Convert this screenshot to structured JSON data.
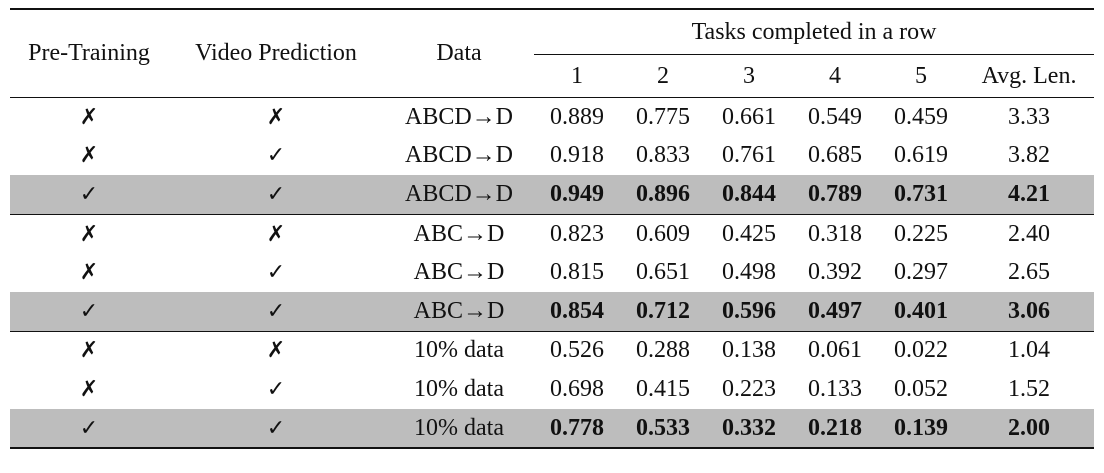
{
  "headers": {
    "pretraining": "Pre-Training",
    "video_prediction": "Video Prediction",
    "data": "Data",
    "tasks_group": "Tasks completed in a row",
    "task_cols": [
      "1",
      "2",
      "3",
      "4",
      "5",
      "Avg. Len."
    ]
  },
  "rows": [
    {
      "pretraining": "✗",
      "video": "✗",
      "data": "ABCD→D",
      "values": [
        "0.889",
        "0.775",
        "0.661",
        "0.549",
        "0.459",
        "3.33"
      ]
    },
    {
      "pretraining": "✗",
      "video": "✓",
      "data": "ABCD→D",
      "values": [
        "0.918",
        "0.833",
        "0.761",
        "0.685",
        "0.619",
        "3.82"
      ]
    },
    {
      "pretraining": "✓",
      "video": "✓",
      "data": "ABCD→D",
      "values": [
        "0.949",
        "0.896",
        "0.844",
        "0.789",
        "0.731",
        "4.21"
      ]
    },
    {
      "pretraining": "✗",
      "video": "✗",
      "data": "ABC→D",
      "values": [
        "0.823",
        "0.609",
        "0.425",
        "0.318",
        "0.225",
        "2.40"
      ]
    },
    {
      "pretraining": "✗",
      "video": "✓",
      "data": "ABC→D",
      "values": [
        "0.815",
        "0.651",
        "0.498",
        "0.392",
        "0.297",
        "2.65"
      ]
    },
    {
      "pretraining": "✓",
      "video": "✓",
      "data": "ABC→D",
      "values": [
        "0.854",
        "0.712",
        "0.596",
        "0.497",
        "0.401",
        "3.06"
      ]
    },
    {
      "pretraining": "✗",
      "video": "✗",
      "data": "10% data",
      "values": [
        "0.526",
        "0.288",
        "0.138",
        "0.061",
        "0.022",
        "1.04"
      ]
    },
    {
      "pretraining": "✗",
      "video": "✓",
      "data": "10% data",
      "values": [
        "0.698",
        "0.415",
        "0.223",
        "0.133",
        "0.052",
        "1.52"
      ]
    },
    {
      "pretraining": "✓",
      "video": "✓",
      "data": "10% data",
      "values": [
        "0.778",
        "0.533",
        "0.332",
        "0.218",
        "0.139",
        "2.00"
      ]
    }
  ]
}
